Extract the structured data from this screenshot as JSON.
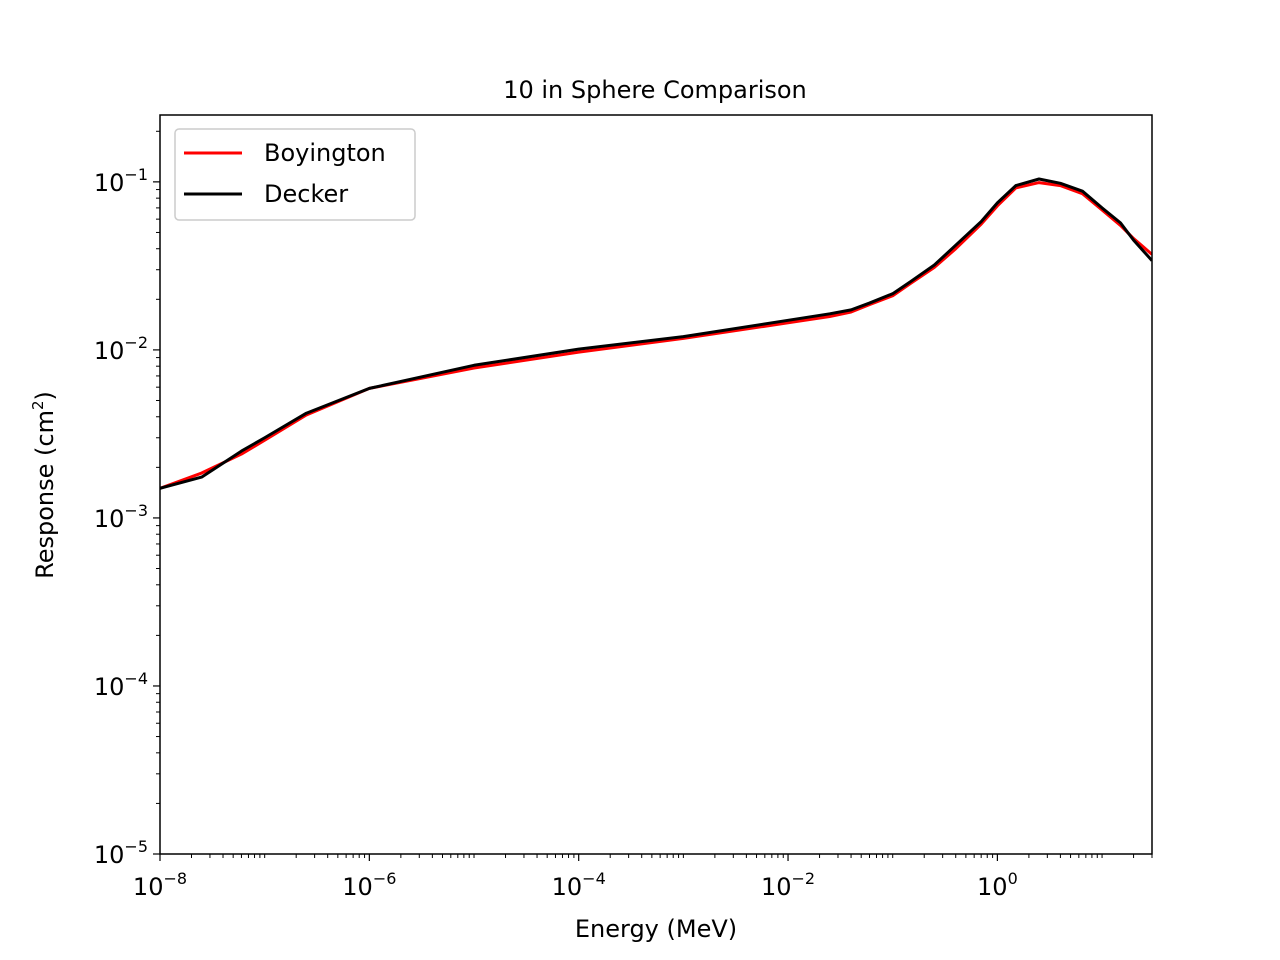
{
  "chart_data": {
    "type": "line",
    "title": "10 in Sphere Comparison",
    "xlabel": "Energy (MeV)",
    "ylabel_base": "Response (cm",
    "ylabel_sup": "2",
    "ylabel_end": ")",
    "xscale": "log",
    "yscale": "log",
    "xlim": [
      1e-08,
      30
    ],
    "ylim": [
      1e-05,
      0.25
    ],
    "grid": false,
    "legend_position": "upper-left",
    "x_ticks": [
      {
        "base": "10",
        "exp": "−8",
        "value": 1e-08
      },
      {
        "base": "10",
        "exp": "−6",
        "value": 1e-06
      },
      {
        "base": "10",
        "exp": "−4",
        "value": 0.0001
      },
      {
        "base": "10",
        "exp": "−2",
        "value": 0.01
      },
      {
        "base": "10",
        "exp": "0",
        "value": 1
      }
    ],
    "y_ticks": [
      {
        "base": "10",
        "exp": "−5",
        "value": 1e-05
      },
      {
        "base": "10",
        "exp": "−4",
        "value": 0.0001
      },
      {
        "base": "10",
        "exp": "−3",
        "value": 0.001
      },
      {
        "base": "10",
        "exp": "−2",
        "value": 0.01
      },
      {
        "base": "10",
        "exp": "−1",
        "value": 0.1
      }
    ],
    "series": [
      {
        "name": "Boyington",
        "color": "#ff0000",
        "x": [
          1e-08,
          2.5e-08,
          6e-08,
          1e-07,
          2.5e-07,
          1e-06,
          1e-05,
          0.0001,
          0.001,
          0.01,
          0.025,
          0.04,
          0.06,
          0.1,
          0.15,
          0.25,
          0.4,
          0.7,
          1.0,
          1.5,
          2.5,
          4,
          6.5,
          10,
          15,
          20,
          30
        ],
        "y": [
          0.0015,
          0.00185,
          0.0024,
          0.0029,
          0.0041,
          0.0059,
          0.0078,
          0.0097,
          0.0117,
          0.0145,
          0.0158,
          0.0168,
          0.0186,
          0.021,
          0.025,
          0.031,
          0.04,
          0.056,
          0.072,
          0.092,
          0.099,
          0.095,
          0.085,
          0.068,
          0.055,
          0.046,
          0.037
        ]
      },
      {
        "name": "Decker",
        "color": "#000000",
        "x": [
          1e-08,
          2.5e-08,
          6e-08,
          1e-07,
          2.5e-07,
          1e-06,
          1e-05,
          0.0001,
          0.001,
          0.01,
          0.025,
          0.04,
          0.06,
          0.1,
          0.15,
          0.25,
          0.4,
          0.7,
          1.0,
          1.5,
          2.5,
          4,
          6.5,
          10,
          15,
          20,
          30
        ],
        "y": [
          0.0015,
          0.00175,
          0.0025,
          0.003,
          0.0042,
          0.0059,
          0.0081,
          0.0101,
          0.012,
          0.015,
          0.0164,
          0.0173,
          0.019,
          0.0216,
          0.0256,
          0.032,
          0.042,
          0.058,
          0.075,
          0.095,
          0.104,
          0.098,
          0.088,
          0.07,
          0.057,
          0.045,
          0.034
        ]
      }
    ]
  }
}
